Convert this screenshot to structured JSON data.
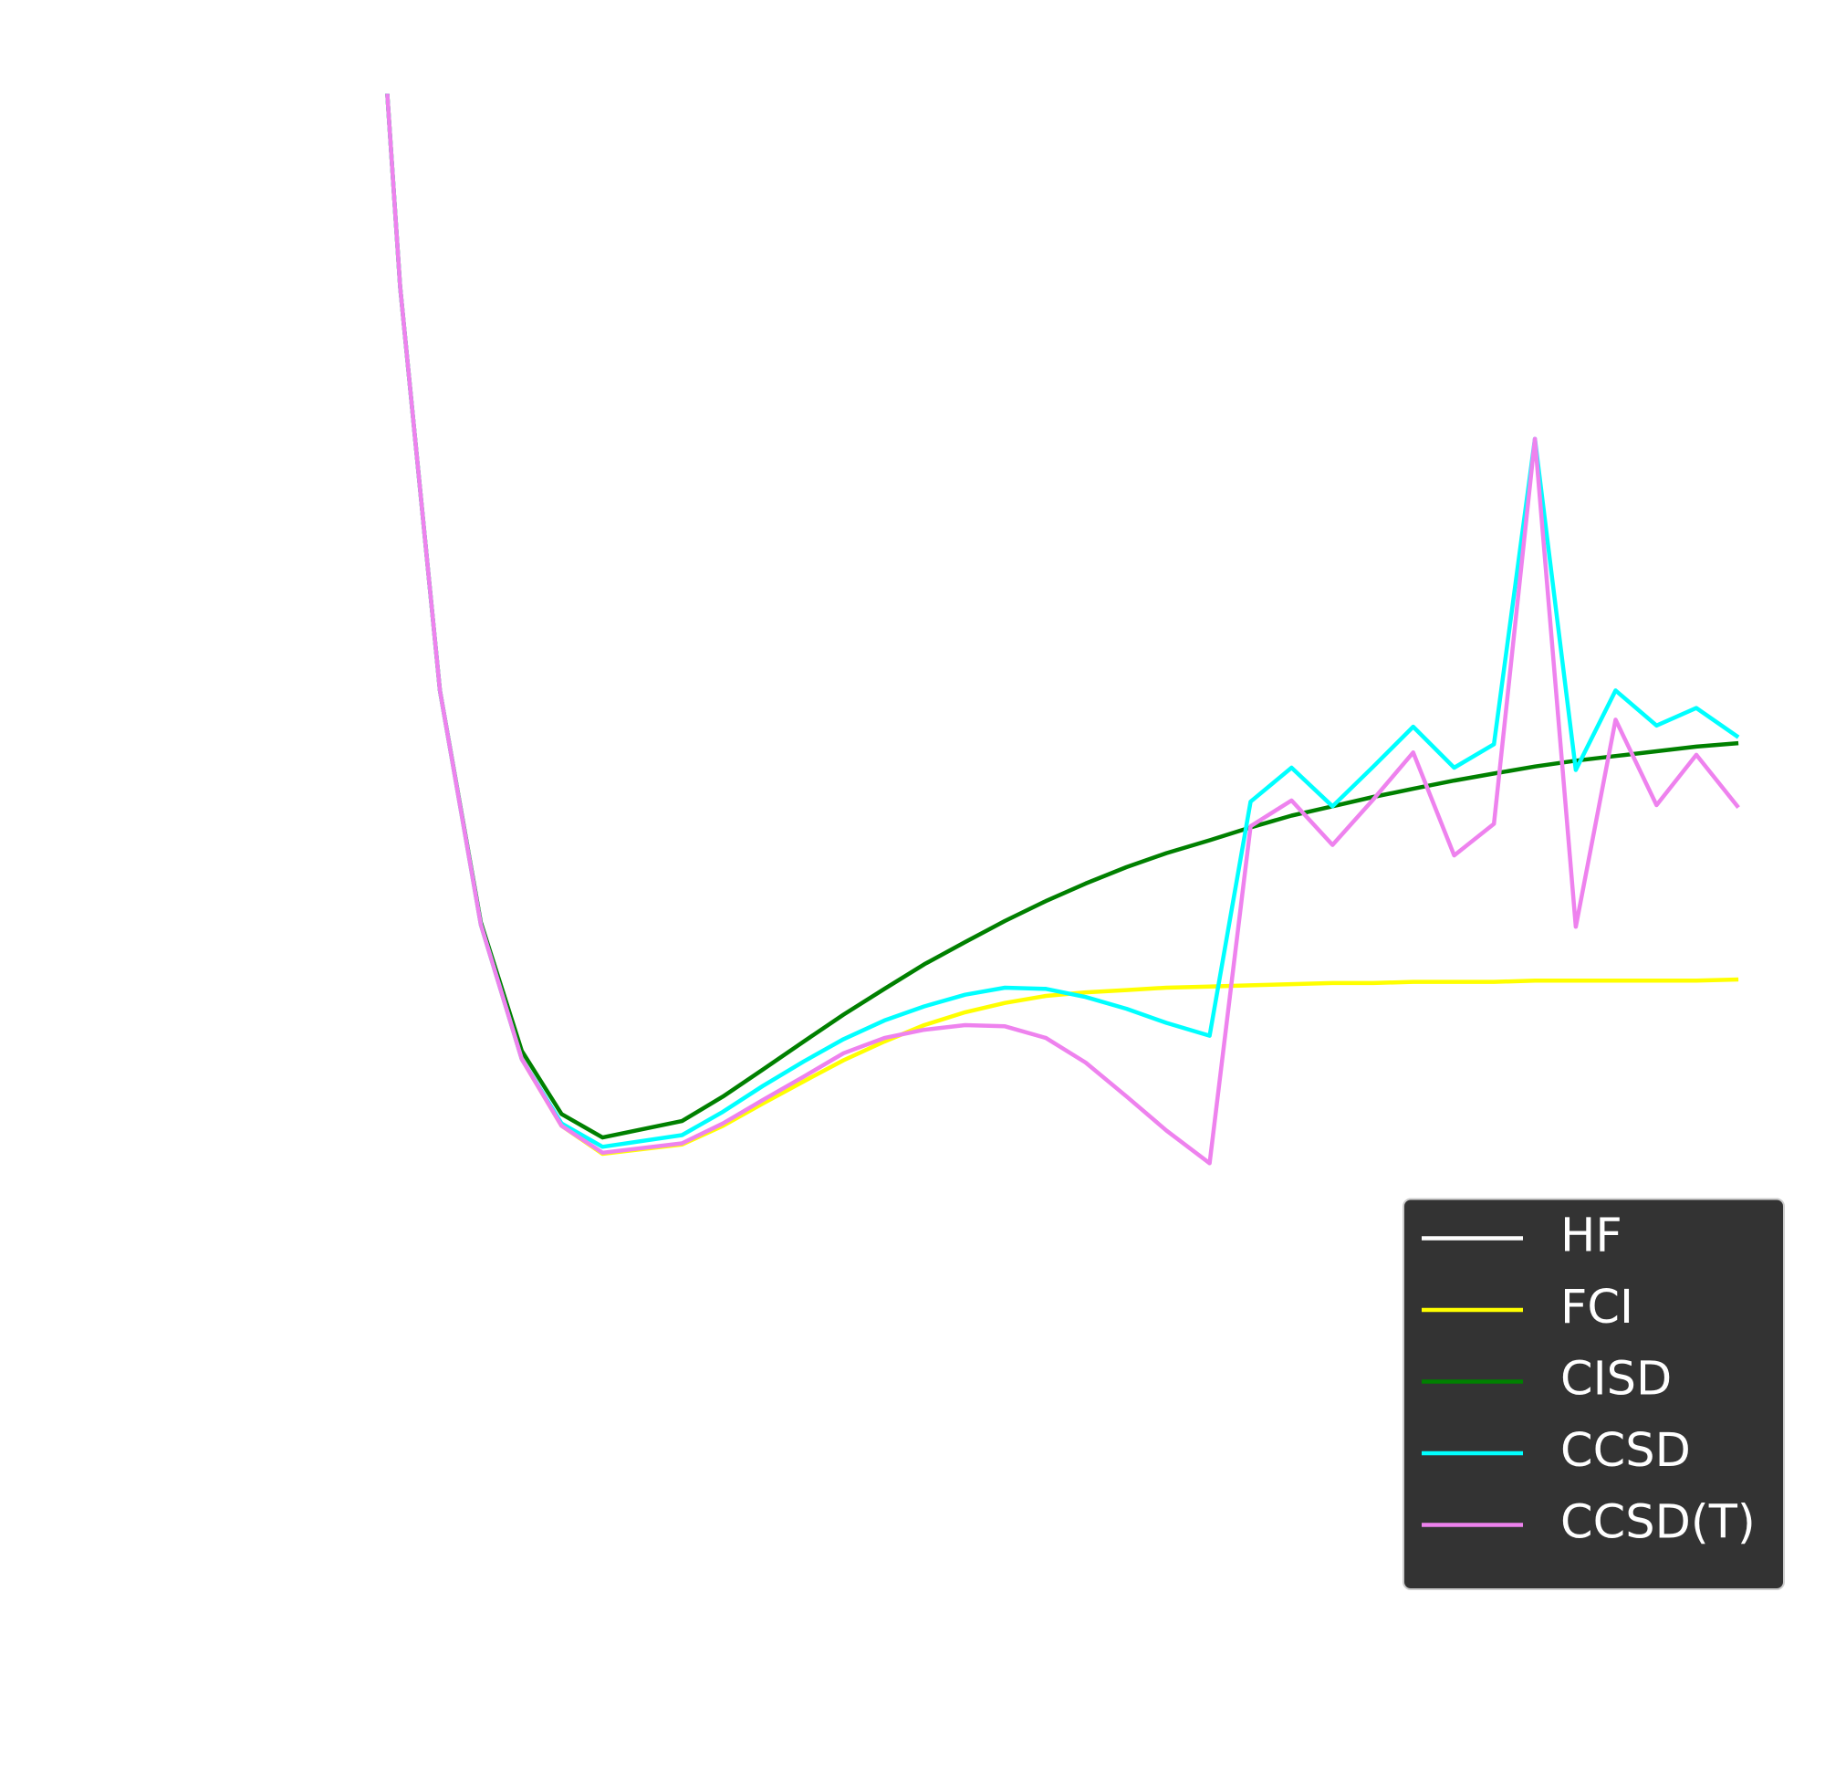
{
  "chart_data": {
    "type": "line",
    "x": [
      33.1,
      34.2,
      37.6,
      41.1,
      44.6,
      48.0,
      51.5,
      58.3,
      61.8,
      65.2,
      68.7,
      72.1,
      75.6,
      79.0,
      82.5,
      85.9,
      89.4,
      92.8,
      96.3,
      99.7,
      103.4,
      106.9,
      110.4,
      113.9,
      117.4,
      120.8,
      124.3,
      127.7,
      131.2,
      134.7,
      138.1,
      141.6,
      145.0,
      148.6
    ],
    "xlim": [
      0,
      156
    ],
    "ylim": [
      0.75,
      152
    ],
    "legend": "lower right",
    "series": [
      {
        "name": "HF",
        "color": "#ffffff",
        "values": [
          null,
          null,
          null,
          null,
          null,
          null,
          null,
          null,
          null,
          null,
          null,
          null,
          null,
          null,
          null,
          null,
          null,
          null,
          null,
          null,
          null,
          null,
          null,
          null,
          null,
          null,
          null,
          null,
          null,
          null,
          null,
          null,
          null,
          null
        ]
      },
      {
        "name": "FCI",
        "color": "#ffff00",
        "values": [
          144.0,
          127.5,
          93.0,
          73.0,
          61.5,
          55.8,
          53.4,
          54.2,
          55.8,
          57.7,
          59.6,
          61.4,
          63.0,
          64.4,
          65.5,
          66.3,
          66.9,
          67.2,
          67.4,
          67.6,
          67.7,
          67.8,
          67.9,
          68.0,
          68.0,
          68.1,
          68.1,
          68.1,
          68.2,
          68.2,
          68.2,
          68.2,
          68.2,
          68.3
        ]
      },
      {
        "name": "CISD",
        "color": "#008000",
        "values": [
          144.0,
          127.5,
          93.0,
          73.2,
          62.2,
          56.8,
          54.8,
          56.2,
          58.3,
          60.6,
          63.0,
          65.3,
          67.5,
          69.6,
          71.5,
          73.3,
          75.0,
          76.5,
          77.9,
          79.1,
          80.2,
          81.3,
          82.3,
          83.1,
          83.9,
          84.6,
          85.3,
          85.9,
          86.5,
          87.0,
          87.4,
          87.8,
          88.2,
          88.5
        ]
      },
      {
        "name": "CCSD",
        "color": "#00ffff",
        "values": [
          144.0,
          127.5,
          93.0,
          73.0,
          61.5,
          56.0,
          54.0,
          55.0,
          57.0,
          59.2,
          61.3,
          63.2,
          64.8,
          66.0,
          67.0,
          67.6,
          67.5,
          66.8,
          65.8,
          64.6,
          63.5,
          83.5,
          86.4,
          83.1,
          86.5,
          89.9,
          86.4,
          88.4,
          114.5,
          86.2,
          93.0,
          90.0,
          91.5,
          89.0
        ]
      },
      {
        "name": "CCSD(T)",
        "color": "#ee82ee",
        "values": [
          144.0,
          127.5,
          93.0,
          73.0,
          61.5,
          55.8,
          53.5,
          54.3,
          56.0,
          58.0,
          60.0,
          62.0,
          63.3,
          64.0,
          64.4,
          64.3,
          63.3,
          61.2,
          58.3,
          55.4,
          52.6,
          81.4,
          83.6,
          79.8,
          83.7,
          87.7,
          78.9,
          81.6,
          114.5,
          72.8,
          90.5,
          83.2,
          87.5,
          83.0
        ]
      }
    ]
  }
}
